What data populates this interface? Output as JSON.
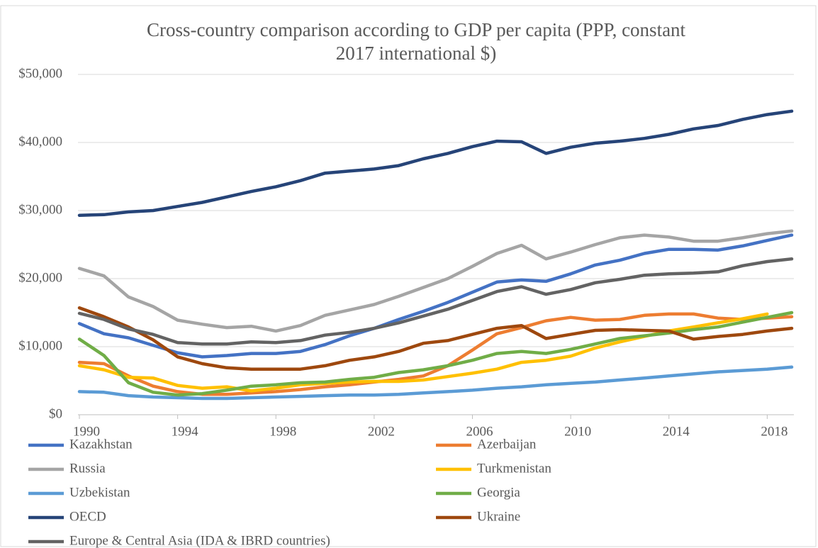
{
  "chart_data": {
    "type": "line",
    "title": "Cross-country comparison according to GDP per capita (PPP, constant 2017 international $)",
    "x": [
      1990,
      1991,
      1992,
      1993,
      1994,
      1995,
      1996,
      1997,
      1998,
      1999,
      2000,
      2001,
      2002,
      2003,
      2004,
      2005,
      2006,
      2007,
      2008,
      2009,
      2010,
      2011,
      2012,
      2013,
      2014,
      2015,
      2016,
      2017,
      2018,
      2019
    ],
    "xlim": [
      1990,
      2019
    ],
    "xticks": [
      1990,
      1994,
      1998,
      2002,
      2006,
      2010,
      2014,
      2018
    ],
    "ylim": [
      0,
      50000
    ],
    "yticks": [
      {
        "value": 0,
        "label": "$0"
      },
      {
        "value": 10000,
        "label": "$10,000"
      },
      {
        "value": 20000,
        "label": "$20,000"
      },
      {
        "value": 30000,
        "label": "$30,000"
      },
      {
        "value": 40000,
        "label": "$40,000"
      },
      {
        "value": 50000,
        "label": "$50,000"
      }
    ],
    "grid": true,
    "legend": "bottom",
    "series": [
      {
        "name": "Kazakhstan",
        "color": "#4472c4",
        "values": [
          13400,
          11900,
          11300,
          10200,
          9100,
          8500,
          8700,
          9000,
          9000,
          9300,
          10300,
          11600,
          12700,
          14000,
          15200,
          16500,
          18000,
          19500,
          19800,
          19600,
          20700,
          22000,
          22700,
          23700,
          24300,
          24300,
          24200,
          24800,
          25600,
          26400
        ]
      },
      {
        "name": "Azerbaijan",
        "color": "#ed7d31",
        "values": [
          7700,
          7500,
          5700,
          4200,
          3400,
          3000,
          3000,
          3200,
          3400,
          3700,
          4100,
          4400,
          4800,
          5200,
          5700,
          7200,
          9500,
          11900,
          12800,
          13800,
          14300,
          13900,
          14000,
          14600,
          14800,
          14800,
          14200,
          14000,
          14200,
          14400
        ]
      },
      {
        "name": "Russia",
        "color": "#a5a5a5",
        "values": [
          21500,
          20400,
          17300,
          15900,
          13900,
          13300,
          12800,
          13000,
          12300,
          13100,
          14600,
          15400,
          16200,
          17400,
          18700,
          20000,
          21800,
          23700,
          24900,
          22900,
          23900,
          25000,
          26000,
          26400,
          26100,
          25500,
          25500,
          26000,
          26600,
          27000
        ]
      },
      {
        "name": "Turkmenistan",
        "color": "#ffc000",
        "values": [
          7200,
          6600,
          5500,
          5400,
          4300,
          3900,
          4100,
          3500,
          3900,
          4400,
          4600,
          4800,
          4900,
          4900,
          5100,
          5600,
          6100,
          6700,
          7700,
          8000,
          8600,
          9800,
          10700,
          11500,
          12300,
          12900,
          13500,
          14100,
          14800,
          null
        ]
      },
      {
        "name": "Uzbekistan",
        "color": "#5b9bd5",
        "values": [
          3400,
          3300,
          2800,
          2600,
          2500,
          2400,
          2400,
          2500,
          2600,
          2700,
          2800,
          2900,
          2900,
          3000,
          3200,
          3400,
          3600,
          3900,
          4100,
          4400,
          4600,
          4800,
          5100,
          5400,
          5700,
          6000,
          6300,
          6500,
          6700,
          7000
        ]
      },
      {
        "name": "Georgia",
        "color": "#70ad47",
        "values": [
          11100,
          8700,
          4700,
          3300,
          2900,
          3100,
          3600,
          4200,
          4400,
          4700,
          4800,
          5200,
          5500,
          6200,
          6600,
          7200,
          8000,
          9000,
          9300,
          9000,
          9600,
          10400,
          11200,
          11600,
          12000,
          12500,
          12900,
          13600,
          14300,
          15000
        ]
      },
      {
        "name": "OECD",
        "color": "#264478",
        "values": [
          29300,
          29400,
          29800,
          30000,
          30600,
          31200,
          32000,
          32800,
          33500,
          34400,
          35500,
          35800,
          36100,
          36600,
          37600,
          38400,
          39400,
          40200,
          40100,
          38400,
          39300,
          39900,
          40200,
          40600,
          41200,
          42000,
          42500,
          43400,
          44100,
          44600
        ]
      },
      {
        "name": "Ukraine",
        "color": "#9e480e",
        "values": [
          15700,
          14400,
          12900,
          11000,
          8500,
          7500,
          6900,
          6700,
          6700,
          6700,
          7200,
          8000,
          8500,
          9300,
          10500,
          10900,
          11800,
          12700,
          13100,
          11200,
          11800,
          12400,
          12500,
          12400,
          12300,
          11100,
          11500,
          11800,
          12300,
          12700
        ]
      },
      {
        "name": "Europe & Central Asia (IDA & IBRD countries)",
        "color": "#636363",
        "values": [
          14900,
          14000,
          12600,
          11800,
          10600,
          10400,
          10400,
          10700,
          10600,
          10900,
          11700,
          12100,
          12700,
          13500,
          14500,
          15500,
          16800,
          18100,
          18800,
          17700,
          18400,
          19400,
          19900,
          20500,
          20700,
          20800,
          21000,
          21900,
          22500,
          22900
        ]
      }
    ]
  }
}
